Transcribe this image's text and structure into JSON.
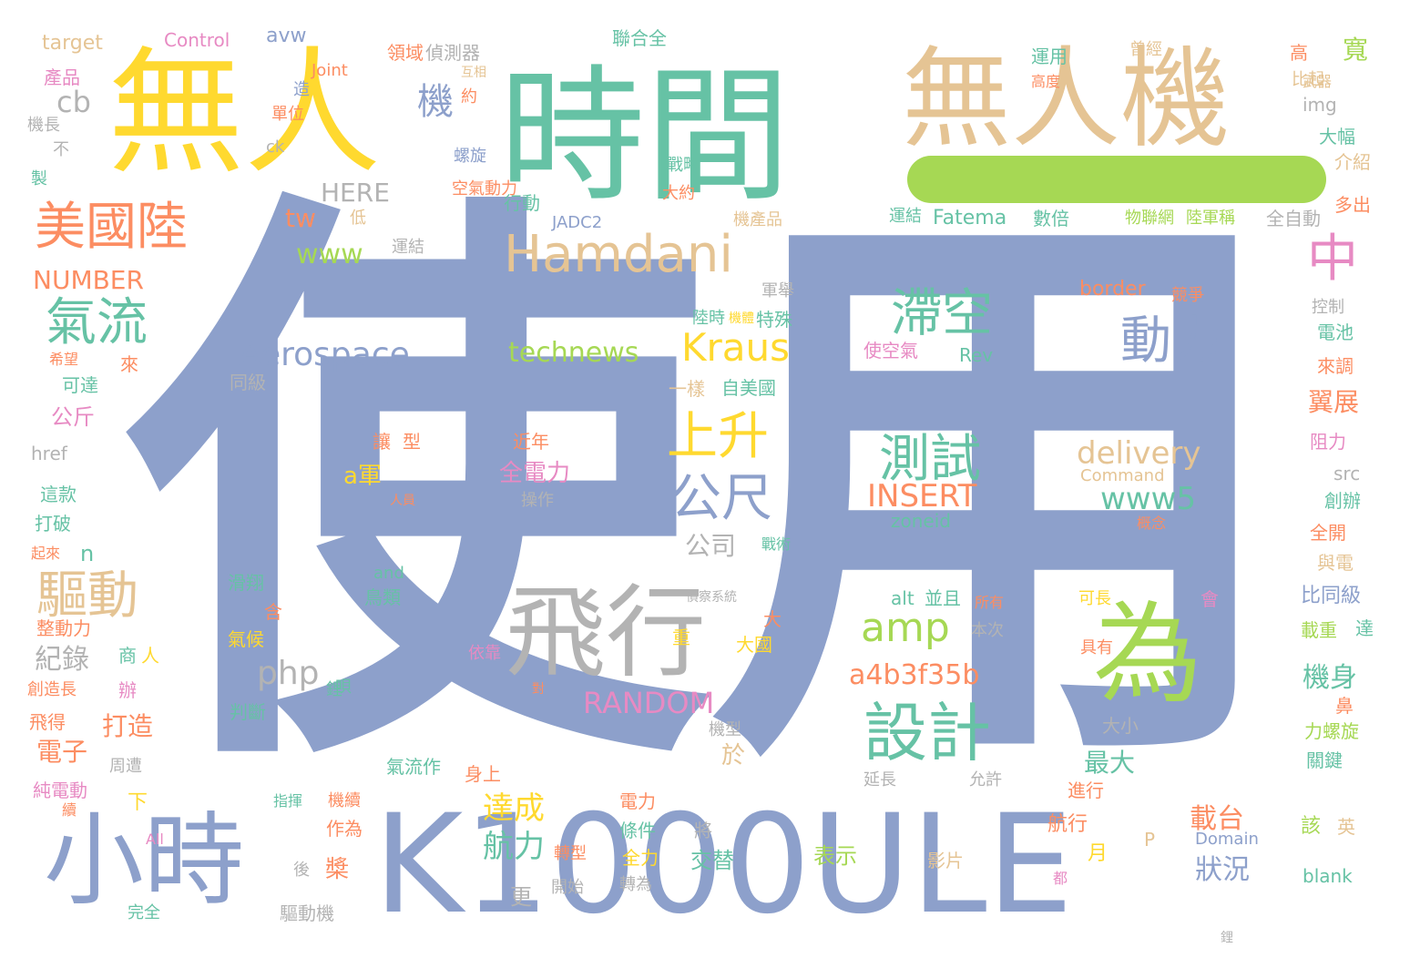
{
  "palette": {
    "blue": "#8da0cb",
    "teal": "#66c2a5",
    "tan": "#e5c494",
    "yellow": "#ffd92f",
    "green": "#a6d854",
    "orange": "#fc8d62",
    "pink": "#e78ac3",
    "gray": "#b3b3b3"
  },
  "bar_color": "#a6d854",
  "words": [
    "使用",
    "時間",
    "無人機",
    "無人",
    "K1000ULE",
    "小時",
    "為",
    "飛行",
    "Hamdani",
    "美國陸",
    "中",
    "氣流",
    "滯空",
    "動力",
    "Aerospace",
    "Kraus",
    "technews",
    "上升",
    "測試",
    "delivery",
    "公尺",
    "www5",
    "amp",
    "INSERT",
    "驅動",
    "設計",
    "a4b3f35b",
    "RANDOM",
    "php",
    "達成",
    "航力",
    "載台",
    "狀況",
    "紀錄",
    "NUMBER",
    "www",
    "tw",
    "HERE",
    "機",
    "cb",
    "產品",
    "target",
    "Control",
    "avw",
    "偵測器",
    "聯合全",
    "運用",
    "高",
    "寬",
    "img",
    "大幅",
    "介紹",
    "多出",
    "全自動",
    "JADC2",
    "運結",
    "Fatema",
    "數倍",
    "物聯網",
    "陸軍稱",
    "border",
    "競爭",
    "控制",
    "電池",
    "來調",
    "翼展",
    "阻力",
    "src",
    "創辦",
    "全開",
    "與電",
    "比同級",
    "載重",
    "達",
    "機身",
    "鼻",
    "力螺旋",
    "關鍵",
    "blank",
    "該",
    "英",
    "Domain",
    "P",
    "月",
    "航行",
    "將",
    "交替",
    "表示",
    "影片",
    "全力",
    "條件",
    "轉型",
    "轉為",
    "開始",
    "電力",
    "都",
    "最大",
    "大小",
    "延長",
    "允許",
    "進行",
    "會",
    "可長",
    "具有",
    "所有",
    "alt",
    "並且",
    "本次",
    "依靠",
    "大國",
    "對",
    "機型",
    "周遭",
    "電子",
    "打造",
    "判斷",
    "同級",
    "一樣",
    "自美國",
    "使空氣",
    "Rev",
    "陸時",
    "軍舉",
    "特殊",
    "公斤",
    "可達",
    "來",
    "希望",
    "href",
    "這款",
    "打破",
    "起來",
    "滑翔",
    "and",
    "鳥類",
    "含",
    "整動力",
    "氣候",
    "商",
    "人",
    "辦",
    "創造長",
    "飛得",
    "純電動",
    "續",
    "All",
    "完全",
    "驅動機",
    "後",
    "指揮",
    "機續",
    "作為",
    "身上",
    "氣流作",
    "下",
    "更",
    "槳",
    "於",
    "a軍",
    "全電力",
    "近年",
    "操作",
    "人員",
    "讓",
    "型",
    "Command",
    "zoneid",
    "概念",
    "公司",
    "n",
    "戰術",
    "偵察系統",
    "大",
    "重",
    "鋰",
    "運結",
    "低",
    "機產品",
    "大約",
    "戰略",
    "行動",
    "空氣動力",
    "螺旋",
    "約",
    "互相",
    "領域",
    "造",
    "Joint",
    "ck",
    "不",
    "機長",
    "單位",
    "高度",
    "武器",
    "比起",
    "曾經",
    "製",
    "機體",
    "唄",
    "鋰"
  ]
}
